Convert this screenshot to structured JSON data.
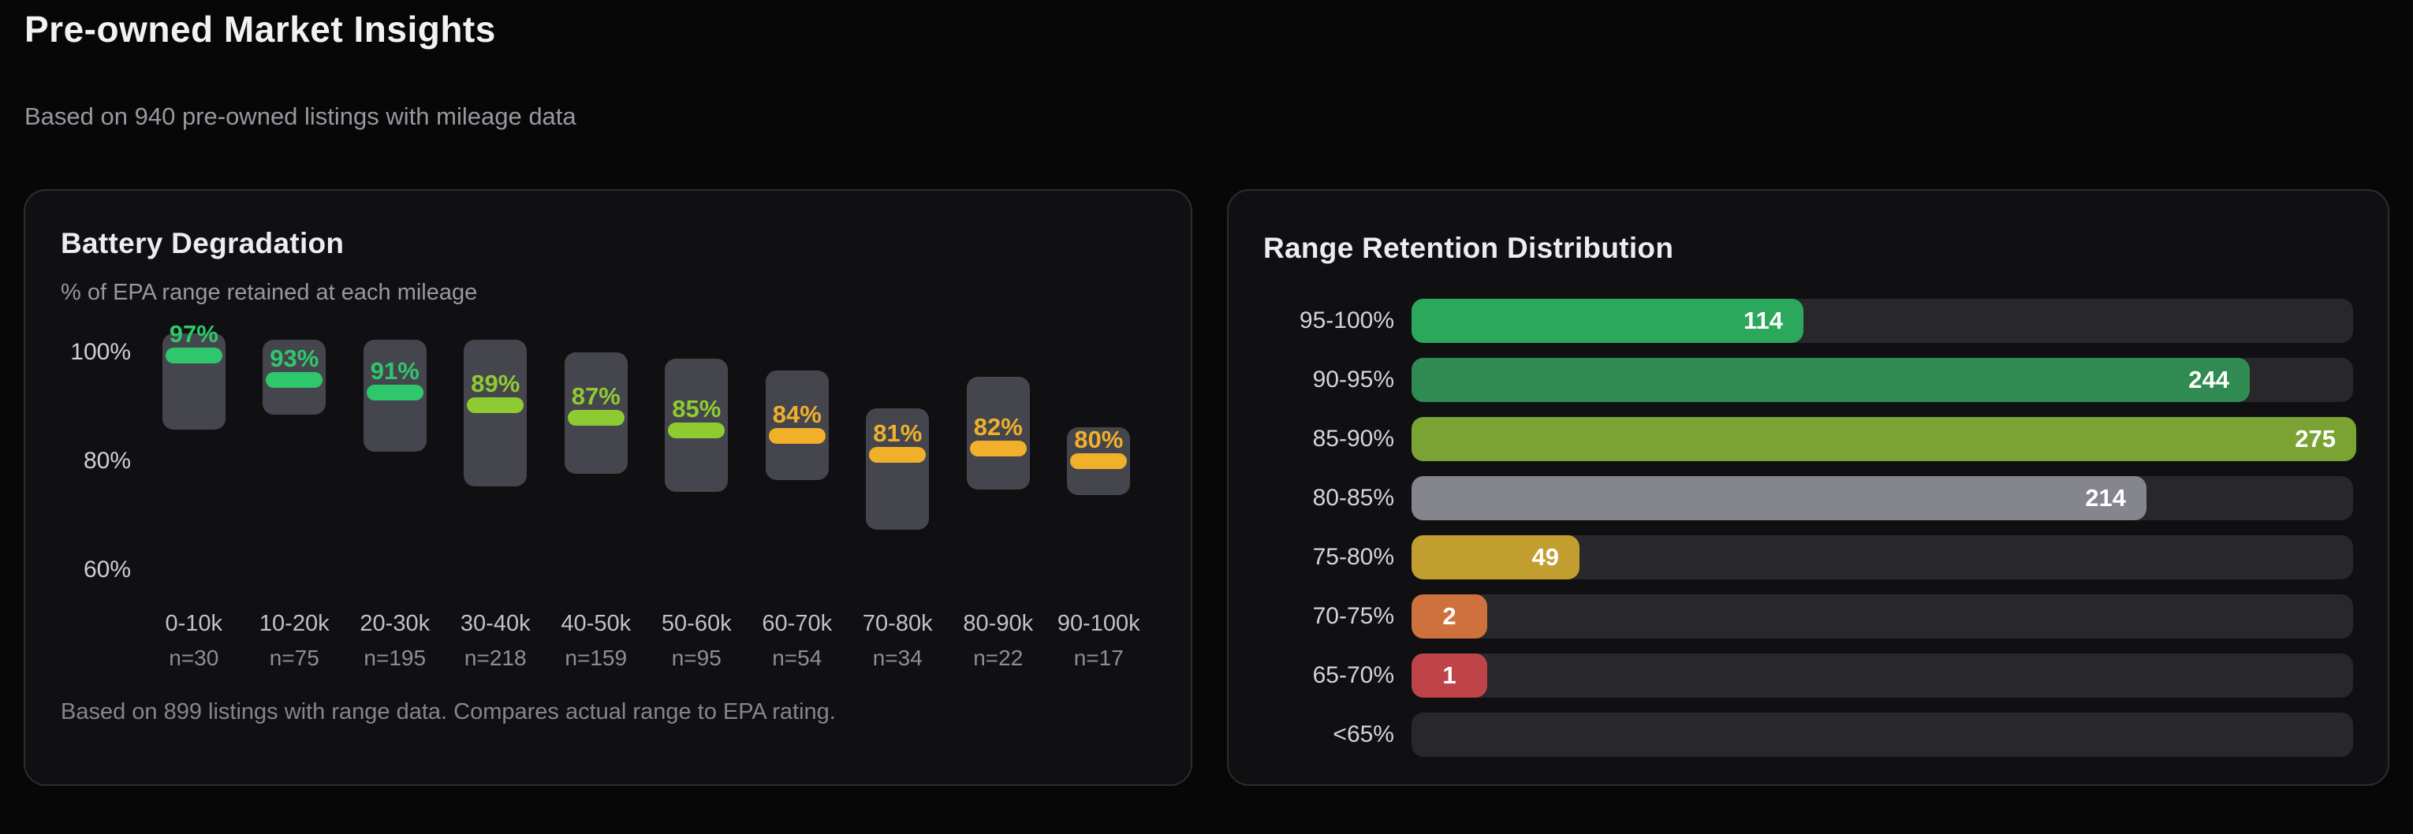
{
  "header": {
    "title": "Pre-owned Market Insights",
    "subtitle": "Based on 940 pre-owned listings with mileage data"
  },
  "chart_data": [
    {
      "type": "bar",
      "variant": "vertical-floating-range-with-median-band",
      "title": "Battery Degradation",
      "subtitle": "% of EPA range retained at each mileage",
      "categories": [
        "0-10k",
        "10-20k",
        "20-30k",
        "30-40k",
        "40-50k",
        "50-60k",
        "60-70k",
        "70-80k",
        "80-90k",
        "90-100k"
      ],
      "sample_counts": [
        30,
        75,
        195,
        218,
        159,
        95,
        54,
        34,
        22,
        17
      ],
      "sample_labels": [
        "n=30",
        "n=75",
        "n=195",
        "n=218",
        "n=159",
        "n=95",
        "n=54",
        "n=34",
        "n=22",
        "n=17"
      ],
      "series": [
        {
          "name": "Median % of EPA range retained",
          "values": [
            97,
            93,
            91,
            89,
            87,
            85,
            84,
            81,
            82,
            80
          ]
        },
        {
          "name": "Range high % (est.)",
          "values": [
            100.5,
            99.5,
            99.5,
            99.5,
            97.5,
            96.5,
            94.5,
            88.5,
            93.5,
            85.5
          ]
        },
        {
          "name": "Range low % (est.)",
          "values": [
            85,
            87.5,
            81.5,
            76,
            78,
            75,
            77,
            69,
            75.5,
            74.5
          ]
        }
      ],
      "median_labels": [
        "97%",
        "93%",
        "91%",
        "89%",
        "87%",
        "85%",
        "84%",
        "81%",
        "82%",
        "80%"
      ],
      "bar_colors": [
        "#2fc76c",
        "#2fc76c",
        "#2fc76c",
        "#8ecb32",
        "#8ecb32",
        "#8ecb32",
        "#f0b02a",
        "#f0b02a",
        "#f0b02a",
        "#f0b02a"
      ],
      "box_color": "#45454d",
      "yticks": [
        {
          "value": 100,
          "label": "100%"
        },
        {
          "value": 80,
          "label": "80%"
        },
        {
          "value": 60,
          "label": "60%"
        }
      ],
      "ylim": [
        62,
        104
      ],
      "grid": false,
      "footnote": "Based on 899 listings with range data. Compares actual range to EPA rating."
    },
    {
      "type": "bar",
      "orientation": "horizontal",
      "title": "Range Retention Distribution",
      "categories": [
        "95-100%",
        "90-95%",
        "85-90%",
        "80-85%",
        "75-80%",
        "70-75%",
        "65-70%",
        "<65%"
      ],
      "values": [
        114,
        244,
        275,
        214,
        49,
        2,
        1,
        0
      ],
      "value_labels": [
        "114",
        "244",
        "275",
        "214",
        "49",
        "2",
        "1",
        ""
      ],
      "bar_colors": [
        "#2ca85d",
        "#2f8b51",
        "#7aa334",
        "#85858d",
        "#c29d30",
        "#cf713c",
        "#bf4449",
        null
      ],
      "track_color": "#28282b",
      "xlim": [
        0,
        275
      ],
      "grid": false,
      "legend": "none"
    }
  ]
}
